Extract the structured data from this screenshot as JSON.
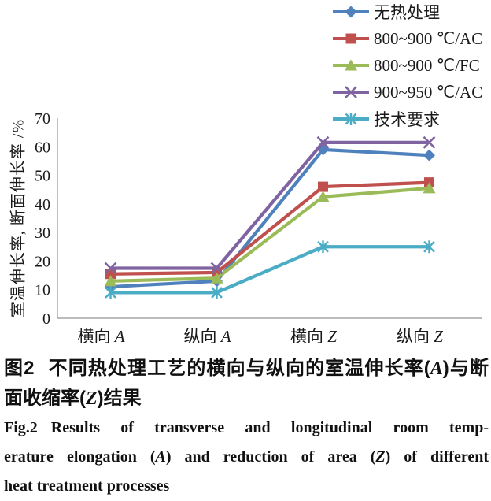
{
  "chart_data": {
    "type": "line",
    "categories": [
      "横向 A",
      "纵向 A",
      "横向 Z",
      "纵向 Z"
    ],
    "series": [
      {
        "name": "无热处理",
        "color": "#4F81BD",
        "marker": "diamond",
        "values": [
          11,
          13,
          59,
          57
        ]
      },
      {
        "name": "800~900 ℃/AC",
        "color": "#C0504D",
        "marker": "square",
        "values": [
          15.5,
          16,
          46,
          47.5
        ]
      },
      {
        "name": "800~900 ℃/FC",
        "color": "#9BBB59",
        "marker": "triangle",
        "values": [
          13,
          14,
          42.5,
          45.5
        ]
      },
      {
        "name": "900~950 ℃/AC",
        "color": "#8064A2",
        "marker": "x",
        "values": [
          17.5,
          17.5,
          61.5,
          61.5
        ]
      },
      {
        "name": "技术要求",
        "color": "#4BACC6",
        "marker": "asterisk",
        "values": [
          9,
          9,
          25,
          25
        ]
      }
    ],
    "title": "",
    "xlabel": "",
    "ylabel": "室温伸长率, 断面伸长率 /%",
    "ylim": [
      0,
      70
    ],
    "ytick_step": 10,
    "yticks": [
      0,
      10,
      20,
      30,
      40,
      50,
      60,
      70
    ],
    "grid": false,
    "legend_position": "top-right",
    "axis_color": "#A6A6A6",
    "text_color": "#1A1A1A"
  },
  "figure": {
    "captions": [
      {
        "name": "caption-zh-line1",
        "lang": "zh",
        "justify": true,
        "segments": [
          {
            "text": "图2"
          },
          {
            "text": "不同热处理工艺的横向与纵向的室温伸长率(",
            "gap": true
          },
          {
            "text": "A",
            "italic": true
          },
          {
            "text": ")与断"
          }
        ]
      },
      {
        "name": "caption-zh-line2",
        "lang": "zh",
        "justify": false,
        "segments": [
          {
            "text": "面收缩率("
          },
          {
            "text": "Z",
            "italic": true
          },
          {
            "text": ")结果"
          }
        ]
      },
      {
        "name": "caption-en-line1",
        "lang": "en",
        "justify": true,
        "segments": [
          {
            "text": "Fig.2"
          },
          {
            "text": "Results of transverse and longitudinal room temp-",
            "gap": true
          }
        ]
      },
      {
        "name": "caption-en-line2",
        "lang": "en",
        "justify": true,
        "segments": [
          {
            "text": "erature elongation ("
          },
          {
            "text": "A",
            "italic": true
          },
          {
            "text": ") and reduction of area ("
          },
          {
            "text": "Z",
            "italic": true
          },
          {
            "text": ") of different"
          }
        ]
      },
      {
        "name": "caption-en-line3",
        "lang": "en",
        "justify": false,
        "segments": [
          {
            "text": "heat treatment processes"
          }
        ]
      }
    ]
  }
}
